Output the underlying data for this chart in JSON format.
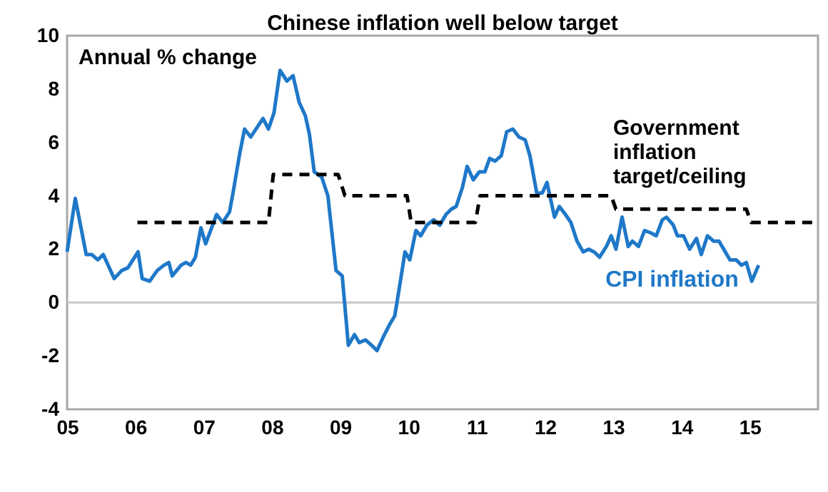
{
  "chart_data": {
    "type": "line",
    "title": "Chinese inflation well below target",
    "ylabel": "Annual % change",
    "xlim": [
      2005,
      2016
    ],
    "ylim": [
      -4,
      10
    ],
    "xticks": [
      {
        "value": 2005,
        "label": "05"
      },
      {
        "value": 2006,
        "label": "06"
      },
      {
        "value": 2007,
        "label": "07"
      },
      {
        "value": 2008,
        "label": "08"
      },
      {
        "value": 2009,
        "label": "09"
      },
      {
        "value": 2010,
        "label": "10"
      },
      {
        "value": 2011,
        "label": "11"
      },
      {
        "value": 2012,
        "label": "12"
      },
      {
        "value": 2013,
        "label": "13"
      },
      {
        "value": 2014,
        "label": "14"
      },
      {
        "value": 2015,
        "label": "15"
      }
    ],
    "yticks": [
      -4,
      -2,
      0,
      2,
      4,
      6,
      8,
      10
    ],
    "grid": false,
    "legend": false,
    "marker": "none",
    "ref_lines": [
      {
        "axis": "y",
        "value": 0,
        "color": "#c8c8c8"
      }
    ],
    "series": [
      {
        "name": "CPI inflation",
        "color": "#1f78c8",
        "line_style": "solid",
        "x": [
          2005.0,
          2005.12,
          2005.28,
          2005.36,
          2005.45,
          2005.53,
          2005.69,
          2005.8,
          2005.89,
          2006.04,
          2006.1,
          2006.21,
          2006.32,
          2006.42,
          2006.49,
          2006.54,
          2006.67,
          2006.74,
          2006.81,
          2006.88,
          2006.96,
          2007.03,
          2007.19,
          2007.28,
          2007.38,
          2007.43,
          2007.53,
          2007.6,
          2007.69,
          2007.87,
          2007.95,
          2008.03,
          2008.12,
          2008.22,
          2008.31,
          2008.4,
          2008.49,
          2008.55,
          2008.62,
          2008.73,
          2008.82,
          2008.94,
          2009.03,
          2009.12,
          2009.21,
          2009.28,
          2009.37,
          2009.46,
          2009.54,
          2009.63,
          2009.73,
          2009.8,
          2009.87,
          2009.95,
          2010.02,
          2010.11,
          2010.18,
          2010.27,
          2010.37,
          2010.46,
          2010.55,
          2010.63,
          2010.7,
          2010.79,
          2010.86,
          2010.95,
          2011.04,
          2011.12,
          2011.19,
          2011.27,
          2011.36,
          2011.44,
          2011.53,
          2011.62,
          2011.71,
          2011.78,
          2011.88,
          2011.96,
          2012.03,
          2012.14,
          2012.21,
          2012.3,
          2012.38,
          2012.47,
          2012.56,
          2012.64,
          2012.72,
          2012.8,
          2012.9,
          2012.97,
          2013.04,
          2013.13,
          2013.22,
          2013.28,
          2013.37,
          2013.46,
          2013.56,
          2013.63,
          2013.72,
          2013.78,
          2013.88,
          2013.94,
          2014.03,
          2014.12,
          2014.22,
          2014.29,
          2014.38,
          2014.47,
          2014.55,
          2014.71,
          2014.8,
          2014.88,
          2014.95,
          2015.03,
          2015.13
        ],
        "values": [
          1.9,
          3.9,
          1.8,
          1.8,
          1.6,
          1.8,
          0.9,
          1.2,
          1.3,
          1.9,
          0.9,
          0.8,
          1.2,
          1.4,
          1.5,
          1.0,
          1.4,
          1.5,
          1.4,
          1.7,
          2.8,
          2.2,
          3.3,
          3.0,
          3.4,
          4.1,
          5.6,
          6.5,
          6.2,
          6.9,
          6.5,
          7.1,
          8.7,
          8.3,
          8.5,
          7.5,
          7.0,
          6.3,
          4.9,
          4.7,
          4.0,
          1.2,
          1.0,
          -1.6,
          -1.2,
          -1.5,
          -1.4,
          -1.6,
          -1.8,
          -1.3,
          -0.8,
          -0.5,
          0.6,
          1.9,
          1.6,
          2.7,
          2.5,
          2.9,
          3.1,
          2.9,
          3.3,
          3.5,
          3.6,
          4.3,
          5.1,
          4.6,
          4.9,
          4.9,
          5.4,
          5.3,
          5.5,
          6.4,
          6.5,
          6.2,
          6.1,
          5.5,
          4.1,
          4.1,
          4.5,
          3.2,
          3.6,
          3.3,
          3.0,
          2.3,
          1.9,
          2.0,
          1.9,
          1.7,
          2.1,
          2.5,
          2.0,
          3.2,
          2.1,
          2.3,
          2.1,
          2.7,
          2.6,
          2.5,
          3.1,
          3.2,
          2.9,
          2.5,
          2.5,
          2.0,
          2.4,
          1.8,
          2.5,
          2.3,
          2.3,
          1.6,
          1.6,
          1.4,
          1.5,
          0.8,
          1.4
        ]
      },
      {
        "name": "Government inflation target/ceiling",
        "color": "#000000",
        "line_style": "dashed",
        "x": [
          2006.03,
          2007.95,
          2008.02,
          2008.97,
          2009.07,
          2009.98,
          2010.04,
          2010.98,
          2011.05,
          2012.97,
          2013.04,
          2014.95,
          2015.02,
          2016.0
        ],
        "values": [
          3,
          3,
          4.8,
          4.8,
          4.0,
          4.0,
          3.0,
          3.0,
          4.0,
          4.0,
          3.5,
          3.5,
          3.0,
          3.0
        ]
      }
    ]
  }
}
